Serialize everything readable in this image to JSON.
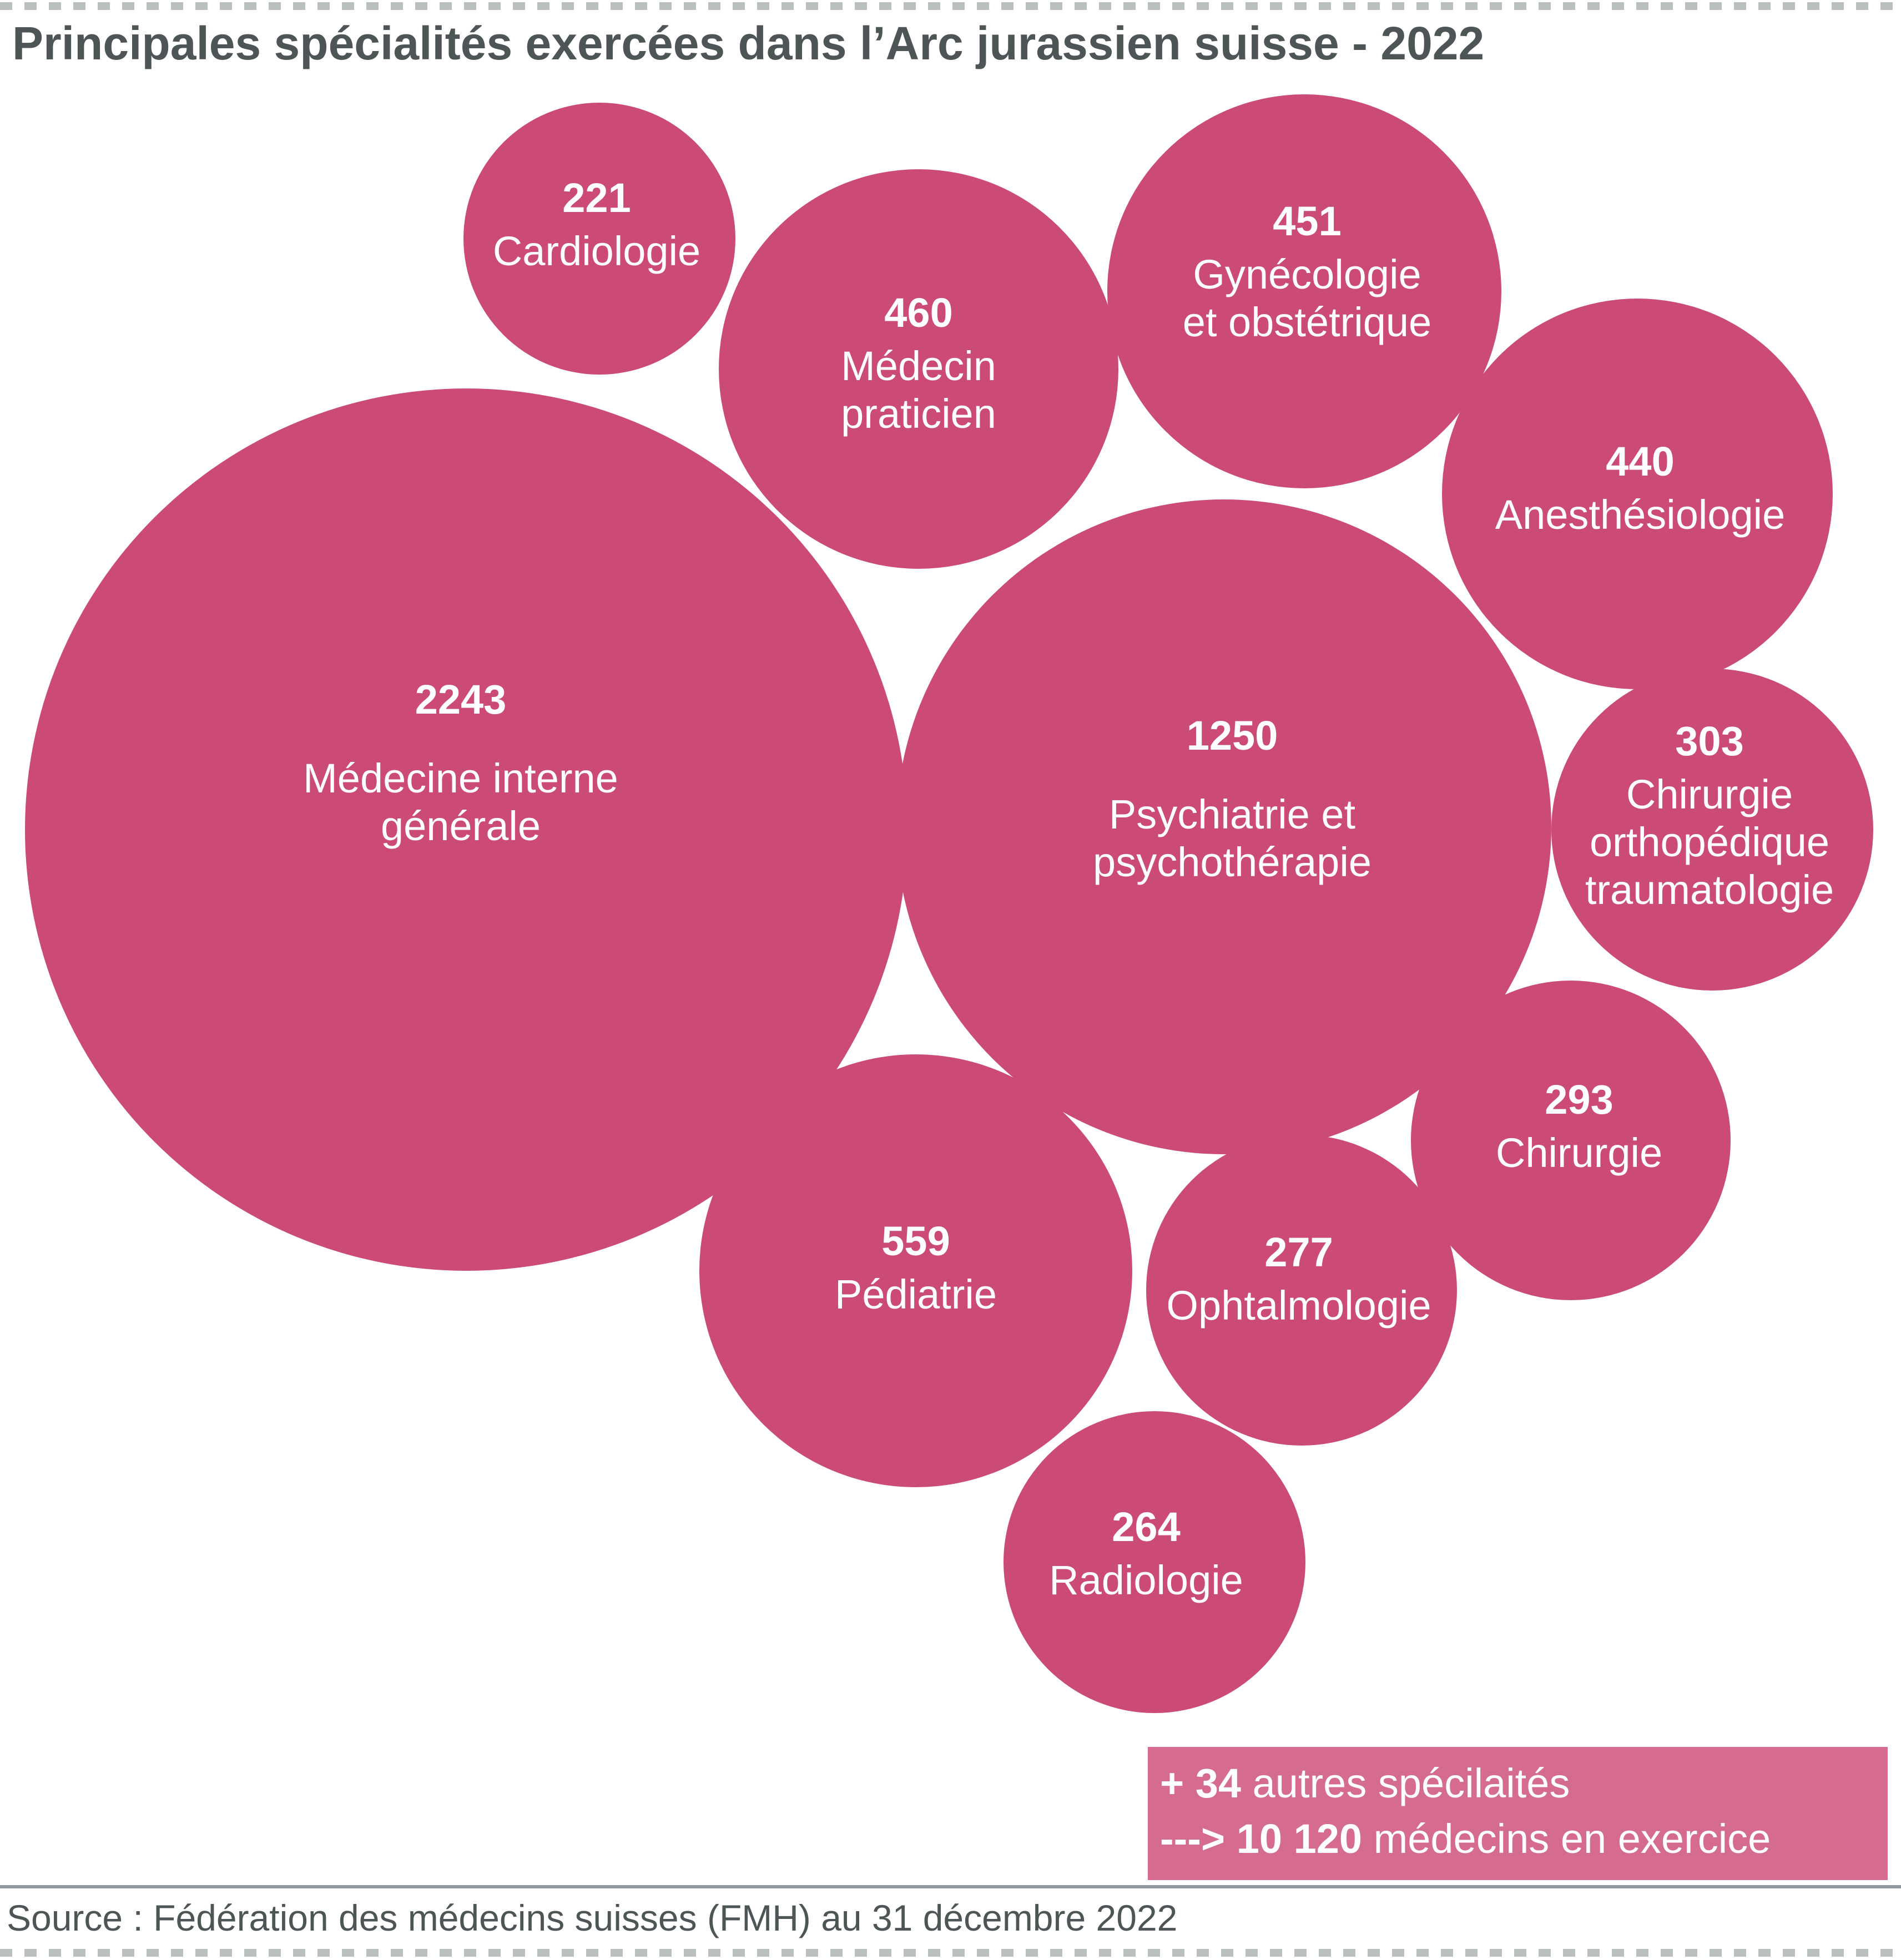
{
  "title": "Principales spécialités exercées dans l’Arc jurassien suisse - 2022",
  "colors": {
    "bubble": "#cc4b75",
    "bubble_text": "#ffffff",
    "callout": "#d56b8f",
    "title": "#4d5556"
  },
  "chart_data": {
    "type": "bubble",
    "title": "Principales spécialités exercées dans l’Arc jurassien suisse - 2022",
    "series": [
      {
        "value": 2243,
        "label": [
          "Médecine interne",
          "générale"
        ]
      },
      {
        "value": 1250,
        "label": [
          "Psychiatrie et",
          "psychothérapie"
        ]
      },
      {
        "value": 559,
        "label": [
          "Pédiatrie"
        ]
      },
      {
        "value": 460,
        "label": [
          "Médecin",
          "praticien"
        ]
      },
      {
        "value": 451,
        "label": [
          "Gynécologie",
          "et obstétrique"
        ]
      },
      {
        "value": 440,
        "label": [
          "Anesthésiologie"
        ]
      },
      {
        "value": 303,
        "label": [
          "Chirurgie",
          "orthopédique",
          "traumatologie"
        ]
      },
      {
        "value": 293,
        "label": [
          "Chirurgie"
        ]
      },
      {
        "value": 277,
        "label": [
          "Ophtalmologie"
        ]
      },
      {
        "value": 264,
        "label": [
          "Radiologie"
        ]
      },
      {
        "value": 221,
        "label": [
          "Cardiologie"
        ]
      }
    ]
  },
  "callout": {
    "line1_bold": "+ 34",
    "line1_rest": " autres spécilaités",
    "line2_bold": "---> 10 120",
    "line2_rest": " médecins en exercice"
  },
  "source": "Source : Fédération des médecins suisses (FMH) au 31 décembre 2022"
}
